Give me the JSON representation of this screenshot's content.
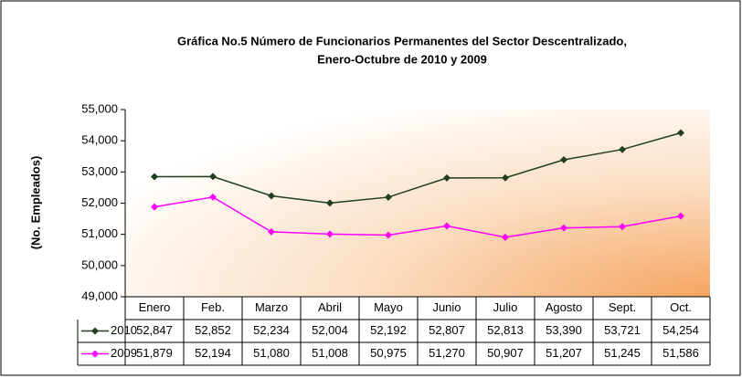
{
  "chart_data": {
    "type": "line",
    "title_lines": [
      "Gráfica No.5 Número de Funcionarios Permanentes del Sector Descentralizado,",
      "Enero-Octubre de 2010 y 2009"
    ],
    "y_label": "(No. Empleados)",
    "categories": [
      "Enero",
      "Feb.",
      "Marzo",
      "Abril",
      "Mayo",
      "Junio",
      "Julio",
      "Agosto",
      "Sept.",
      "Oct."
    ],
    "series": [
      {
        "name": "2010",
        "color": "#1f3f1f",
        "values": [
          52847,
          52852,
          52234,
          52004,
          52192,
          52807,
          52813,
          53390,
          53721,
          54254
        ],
        "value_labels": [
          "52,847",
          "52,852",
          "52,234",
          "52,004",
          "52,192",
          "52,807",
          "52,813",
          "53,390",
          "53,721",
          "54,254"
        ]
      },
      {
        "name": "2009",
        "color": "#ff00ff",
        "values": [
          51879,
          52194,
          51080,
          51008,
          50975,
          51270,
          50907,
          51207,
          51245,
          51586
        ],
        "value_labels": [
          "51,879",
          "52,194",
          "51,080",
          "51,008",
          "50,975",
          "51,270",
          "50,907",
          "51,207",
          "51,245",
          "51,586"
        ]
      }
    ],
    "ylim": [
      49000,
      55000
    ],
    "yticks": [
      {
        "value": 49000,
        "label": "49,000"
      },
      {
        "value": 50000,
        "label": "50,000"
      },
      {
        "value": 51000,
        "label": "51,000"
      },
      {
        "value": 52000,
        "label": "52,000"
      },
      {
        "value": 53000,
        "label": "53,000"
      },
      {
        "value": 54000,
        "label": "54,000"
      },
      {
        "value": 55000,
        "label": "55,000"
      }
    ]
  }
}
